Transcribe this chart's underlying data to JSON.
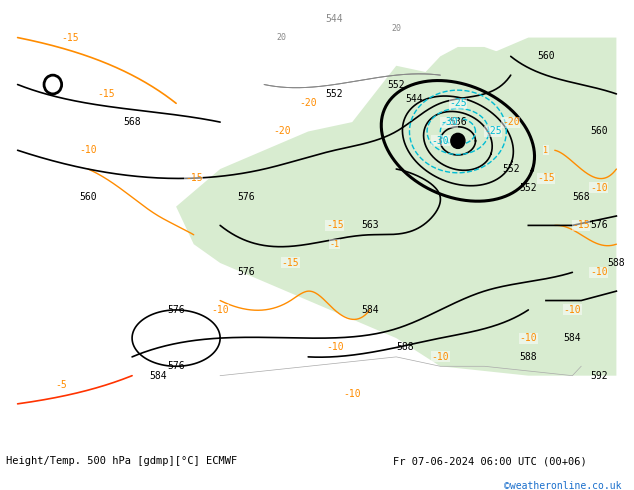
{
  "title_left": "Height/Temp. 500 hPa [gdmp][°C] ECMWF",
  "title_right": "Fr 07-06-2024 06:00 UTC (00+06)",
  "watermark": "©weatheronline.co.uk",
  "background_land": "#d8ecd0",
  "background_sea": "#d8d8d8",
  "z500_color": "#000000",
  "z500_thick_color": "#000000",
  "temp_neg_color": "#ff8c00",
  "temp_pos_color": "#ff0000",
  "temp_cyan_color": "#00bcd4",
  "map_xlim": [
    -30,
    40
  ],
  "map_ylim": [
    30,
    75
  ],
  "figsize": [
    6.34,
    4.9
  ],
  "dpi": 100
}
